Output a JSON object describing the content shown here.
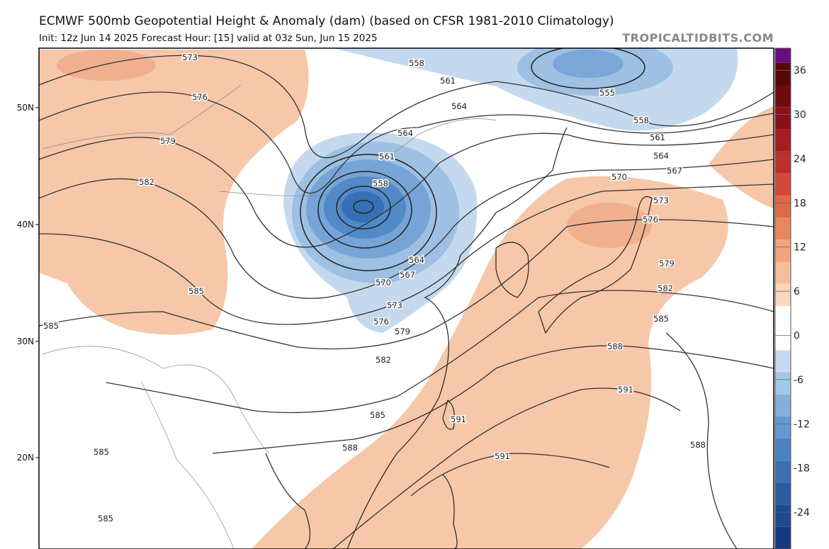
{
  "header": {
    "title": "ECMWF 500mb Geopotential Height & Anomaly (dam) (based on CFSR 1981-2010 Climatology)",
    "subtitle": "Init: 12z Jun 14 2025   Forecast Hour: [15]   valid at 03z Sun, Jun 15 2025",
    "source": "TROPICALTIDBITS.COM"
  },
  "map": {
    "latitude_labels": [
      "50N",
      "40N",
      "30N",
      "20N"
    ],
    "contour_labels": [
      573,
      558,
      561,
      555,
      576,
      564,
      558,
      564,
      561,
      579,
      561,
      564,
      567,
      570,
      582,
      558,
      573,
      576,
      564,
      579,
      567,
      570,
      582,
      585,
      573,
      585,
      576,
      585,
      579,
      588,
      582,
      591,
      585,
      591,
      588,
      585,
      588,
      591,
      585
    ]
  },
  "colorbar": {
    "ylim": [
      -29,
      39
    ],
    "yticks": [
      36,
      30,
      24,
      18,
      12,
      6,
      0,
      -6,
      -12,
      -18,
      -24
    ]
  }
}
